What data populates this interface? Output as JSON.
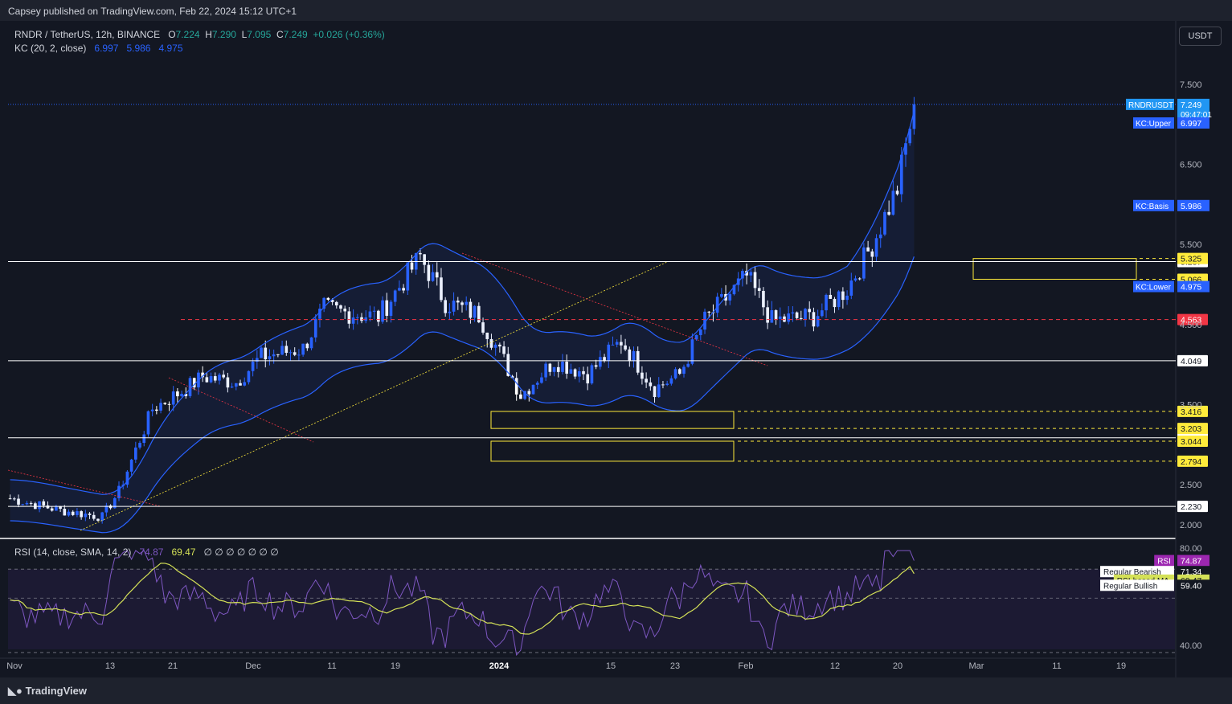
{
  "header": {
    "published": "Capsey published on TradingView.com, Feb 22, 2024 15:12 UTC+1"
  },
  "footer": {
    "brand": "TradingView"
  },
  "currency_button": "USDT",
  "legend": {
    "symbol": "RNDR / TetherUS, 12h, BINANCE",
    "o_label": "O",
    "o": "7.224",
    "h_label": "H",
    "h": "7.290",
    "l_label": "L",
    "l": "7.095",
    "c_label": "C",
    "c": "7.249",
    "change": "+0.026 (+0.36%)",
    "kc_label": "KC (20, 2, close)",
    "kc_upper": "6.997",
    "kc_basis": "5.986",
    "kc_lower": "4.975",
    "rsi_label": "RSI (14, close, SMA, 14, 2)",
    "rsi_value": "74.87",
    "rsi_ma": "69.47",
    "rsi_extra": "∅ ∅ ∅ ∅ ∅ ∅ ∅"
  },
  "colors": {
    "bg": "#131722",
    "up": "#2962ff",
    "down": "#ffffff",
    "kc": "#2962ff",
    "rsi": "#7e57c2",
    "rsi_ma": "#d4e157",
    "zone": "#ffeb3b",
    "red": "#f23645",
    "axis": "#b2b5be"
  },
  "chart_data": [
    {
      "type": "candlestick",
      "interval": "12h",
      "ylim": [
        1.85,
        7.85
      ],
      "y_ticks": [
        "2.000",
        "2.500",
        "3.500",
        "4.500",
        "5.500",
        "6.500",
        "7.500"
      ],
      "x_ticks": [
        "Nov",
        "13",
        "21",
        "Dec",
        "11",
        "19",
        "2024",
        "15",
        "23",
        "Feb",
        "12",
        "20",
        "Mar",
        "11",
        "19"
      ],
      "candles": {
        "start_price": 2.33,
        "waypoints": [
          [
            0,
            2.33
          ],
          [
            12,
            2.18
          ],
          [
            22,
            2.1
          ],
          [
            26,
            2.42
          ],
          [
            34,
            3.45
          ],
          [
            42,
            3.7
          ],
          [
            46,
            3.85
          ],
          [
            54,
            3.78
          ],
          [
            60,
            4.1
          ],
          [
            70,
            4.2
          ],
          [
            75,
            4.7
          ],
          [
            80,
            4.65
          ],
          [
            88,
            4.6
          ],
          [
            98,
            5.35
          ],
          [
            104,
            4.78
          ],
          [
            112,
            4.62
          ],
          [
            118,
            4.05
          ],
          [
            122,
            3.62
          ],
          [
            130,
            4.05
          ],
          [
            138,
            3.88
          ],
          [
            146,
            4.3
          ],
          [
            154,
            3.7
          ],
          [
            160,
            3.88
          ],
          [
            166,
            4.55
          ],
          [
            176,
            5.1
          ],
          [
            182,
            4.55
          ],
          [
            192,
            4.6
          ],
          [
            200,
            4.95
          ],
          [
            206,
            5.5
          ],
          [
            212,
            6.2
          ],
          [
            216,
            7.249
          ]
        ],
        "last_close": 7.249
      },
      "series": [
        {
          "name": "KC:Upper",
          "value": 6.997
        },
        {
          "name": "KC:Basis",
          "value": 5.986
        },
        {
          "name": "KC:Lower",
          "value": 4.975
        }
      ],
      "horizontal_levels": [
        {
          "value": 5.287,
          "label": "5.287",
          "style": "white"
        },
        {
          "value": 4.049,
          "label": "4.049",
          "style": "white"
        },
        {
          "value": 3.086,
          "label": "3.086",
          "style": "white"
        },
        {
          "value": 2.23,
          "label": "2.230",
          "style": "white"
        },
        {
          "value": 4.563,
          "label": "4.563",
          "style": "red-dashed"
        },
        {
          "value": 5.325,
          "label": "5.325",
          "style": "yellow-dashed"
        },
        {
          "value": 5.066,
          "label": "5.066",
          "style": "yellow-dashed"
        },
        {
          "value": 3.416,
          "label": "3.416",
          "style": "yellow-dashed"
        },
        {
          "value": 3.203,
          "label": "3.203",
          "style": "yellow-dashed"
        },
        {
          "value": 3.044,
          "label": "3.044",
          "style": "yellow-dashed"
        },
        {
          "value": 2.794,
          "label": "2.794",
          "style": "yellow-dashed"
        }
      ],
      "zones": [
        {
          "from": "Feb 24",
          "to": "Mar 21",
          "top": 5.325,
          "bottom": 5.066
        },
        {
          "from": "Dec 31",
          "to": "Jan 29",
          "top": 3.416,
          "bottom": 3.203
        },
        {
          "from": "Dec 31",
          "to": "Jan 29",
          "top": 3.044,
          "bottom": 2.794
        }
      ],
      "price_tags": [
        {
          "name": "RNDRUSDT",
          "value": "7.249",
          "countdown": "09:47:01"
        },
        {
          "name": "KC:Upper",
          "value": "6.997"
        },
        {
          "name": "KC:Basis",
          "value": "5.986"
        },
        {
          "name": "KC:Lower",
          "value": "4.975"
        }
      ]
    },
    {
      "type": "line",
      "title": "RSI (14, close, SMA, 14, 2)",
      "ylim": [
        35,
        82
      ],
      "y_ticks": [
        "80.00",
        "40.00"
      ],
      "series": [
        {
          "name": "RSI",
          "value": 74.87
        },
        {
          "name": "RSI-based MA",
          "value": 69.47
        }
      ],
      "levels": [
        {
          "name": "Regular Bearish",
          "value": 71.34
        },
        {
          "name": "Regular Bullish",
          "value": 59.4
        }
      ]
    }
  ]
}
